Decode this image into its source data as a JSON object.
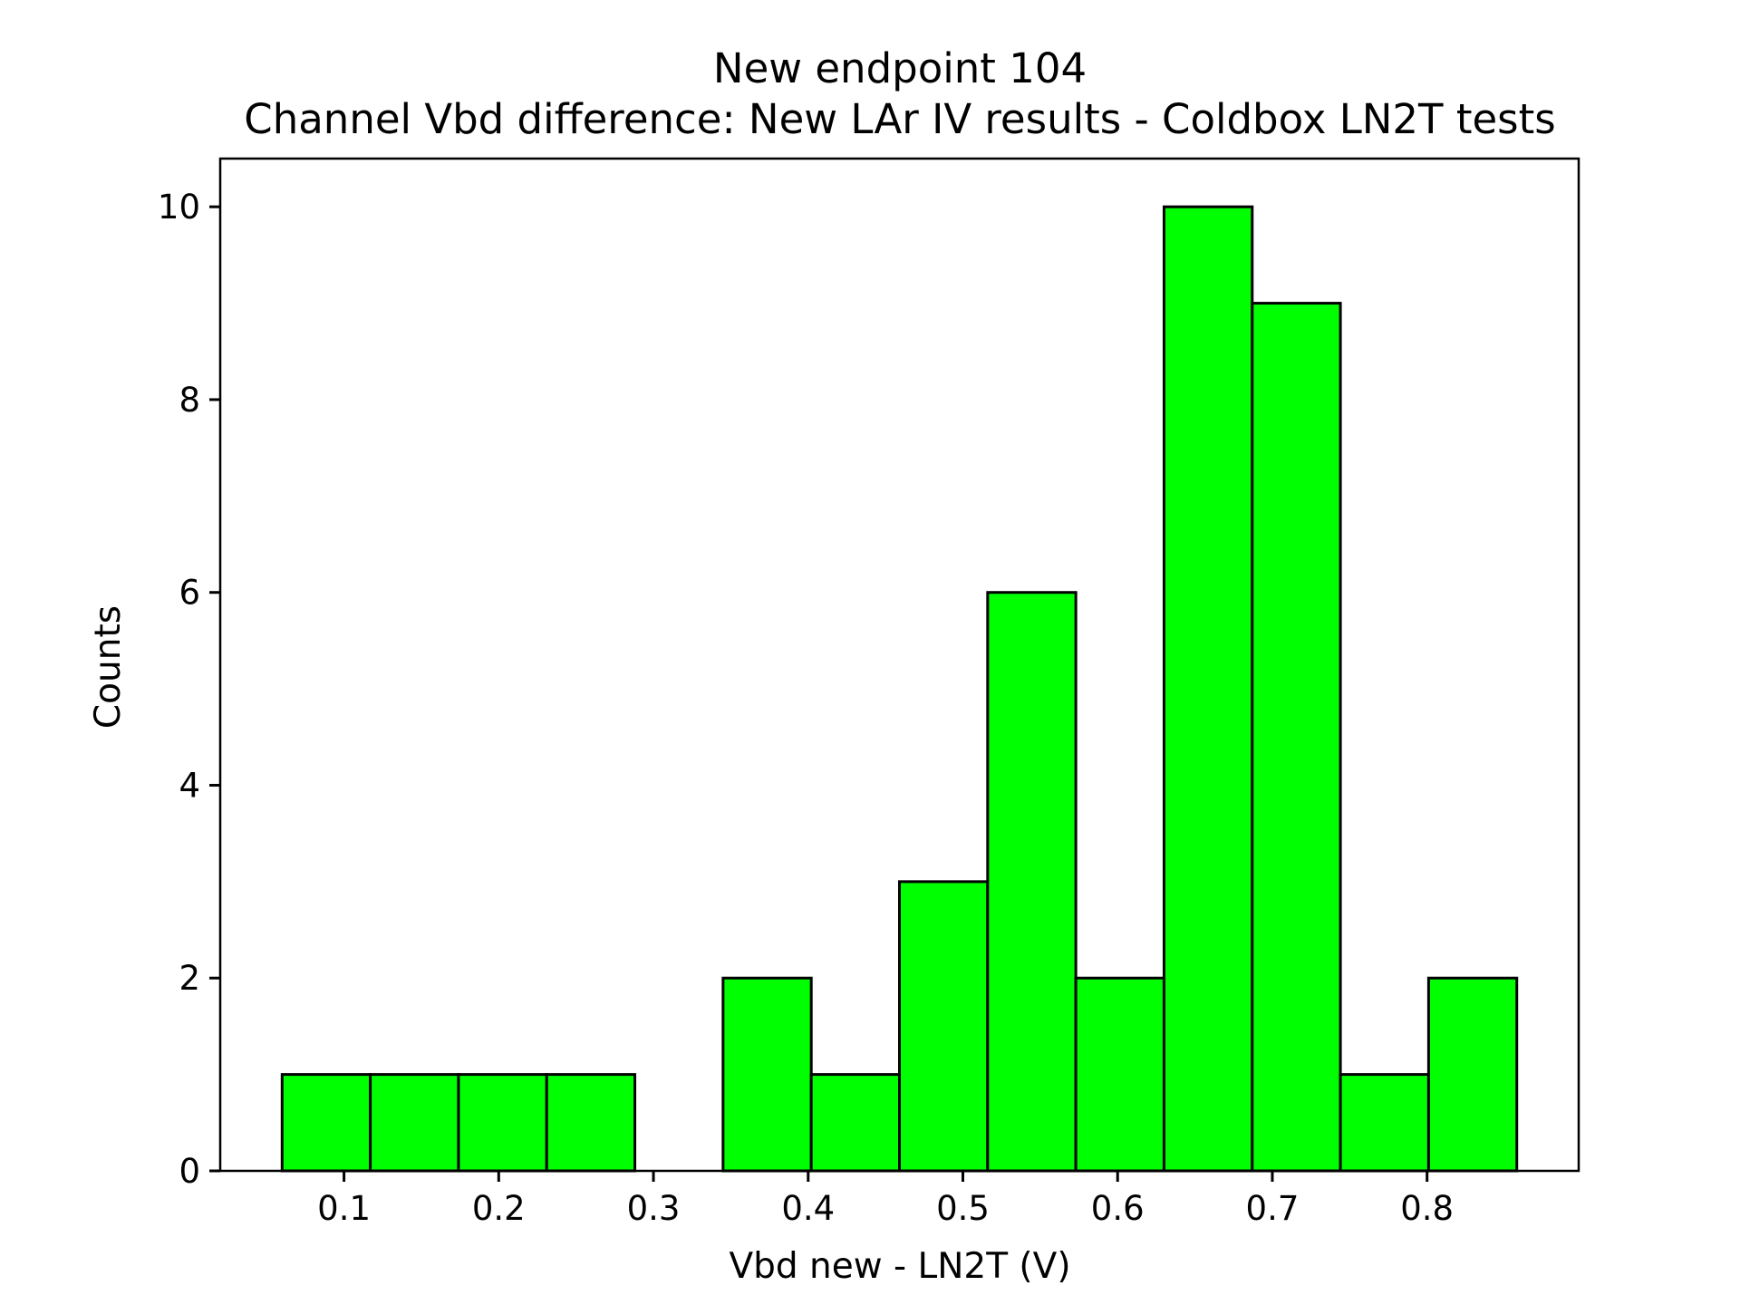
{
  "chart_data": {
    "type": "bar",
    "title_lines": [
      "New endpoint 104",
      "Channel Vbd difference: New LAr IV results -  Coldbox LN2T tests"
    ],
    "xlabel": "Vbd new - LN2T (V)",
    "ylabel": "Counts",
    "xlim": [
      0.02,
      0.898
    ],
    "ylim": [
      0,
      10.5
    ],
    "xticks": [
      {
        "value": 0.1,
        "label": "0.1"
      },
      {
        "value": 0.2,
        "label": "0.2"
      },
      {
        "value": 0.3,
        "label": "0.3"
      },
      {
        "value": 0.4,
        "label": "0.4"
      },
      {
        "value": 0.5,
        "label": "0.5"
      },
      {
        "value": 0.6,
        "label": "0.6"
      },
      {
        "value": 0.7,
        "label": "0.7"
      },
      {
        "value": 0.8,
        "label": "0.8"
      }
    ],
    "yticks": [
      {
        "value": 0,
        "label": "0"
      },
      {
        "value": 2,
        "label": "2"
      },
      {
        "value": 4,
        "label": "4"
      },
      {
        "value": 6,
        "label": "6"
      },
      {
        "value": 8,
        "label": "8"
      },
      {
        "value": 10,
        "label": "10"
      }
    ],
    "bin_edges": [
      0.06,
      0.117,
      0.174,
      0.231,
      0.288,
      0.345,
      0.402,
      0.459,
      0.516,
      0.573,
      0.63,
      0.687,
      0.744,
      0.801,
      0.858
    ],
    "values": [
      1,
      1,
      1,
      1,
      0,
      2,
      1,
      3,
      6,
      2,
      10,
      9,
      1,
      2
    ],
    "bar_color": "#00ff00",
    "edge_color": "#000000",
    "grid": false,
    "legend": false
  }
}
